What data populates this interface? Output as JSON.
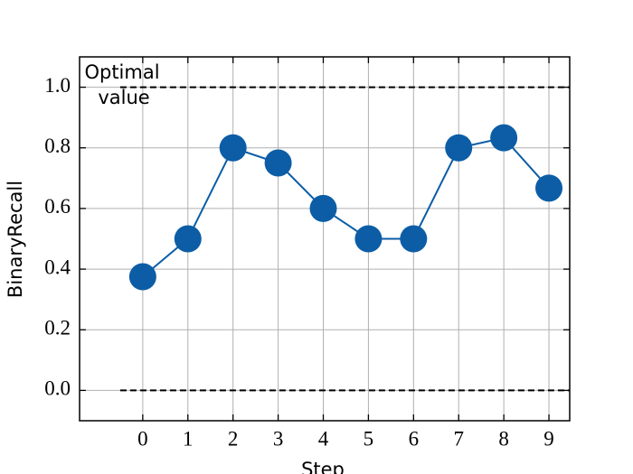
{
  "chart_data": {
    "type": "line",
    "x_label": "Step",
    "y_label": "BinaryRecall",
    "x": [
      0,
      1,
      2,
      3,
      4,
      5,
      6,
      7,
      8,
      9
    ],
    "series": [
      {
        "name": "BinaryRecall",
        "color": "#0C5DA5",
        "values": [
          0.375,
          0.5,
          0.8,
          0.75,
          0.6,
          0.5,
          0.5,
          0.8,
          0.833,
          0.667
        ]
      }
    ],
    "xlim": [
      -1.4,
      9.46
    ],
    "ylim": [
      -0.1,
      1.1
    ],
    "xticks": [
      0,
      1,
      2,
      3,
      4,
      5,
      6,
      7,
      8,
      9
    ],
    "yticks": [
      {
        "value": 0,
        "label": "0.0"
      },
      {
        "value": 0.2,
        "label": "0.2"
      },
      {
        "value": 0.4,
        "label": "0.4"
      },
      {
        "value": 0.6,
        "label": "0.6"
      },
      {
        "value": 0.8,
        "label": "0.8"
      },
      {
        "value": 1,
        "label": "1.0"
      }
    ],
    "grid": true,
    "reference_lines": {
      "values": [
        1,
        0
      ],
      "x_start": -0.5
    },
    "annotation": [
      "Optimal",
      "value"
    ]
  }
}
